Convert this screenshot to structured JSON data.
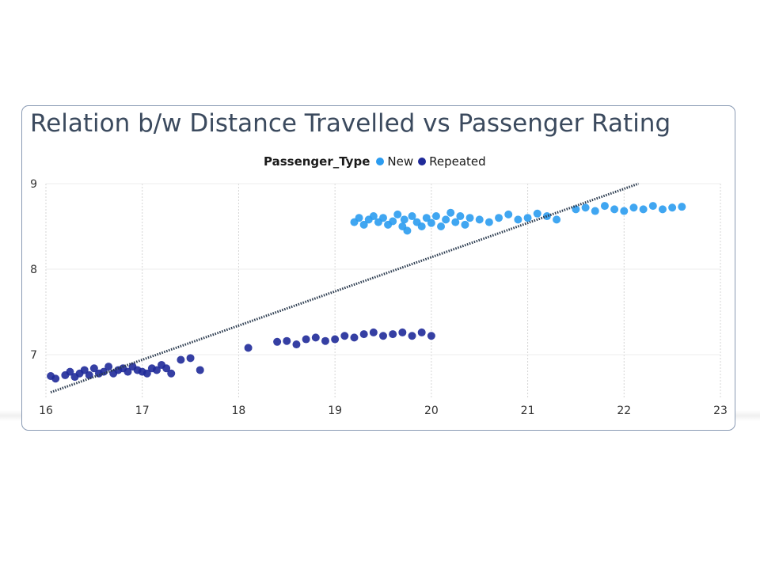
{
  "chart_data": {
    "type": "scatter",
    "title": "Relation b/w Distance Travelled vs Passenger Rating",
    "legend": {
      "title": "Passenger_Type",
      "placement": "top-center",
      "entries": [
        "New",
        "Repeated"
      ]
    },
    "xlim": [
      16,
      23
    ],
    "ylim": [
      6.5,
      9
    ],
    "x_ticks": [
      "16",
      "17",
      "18",
      "19",
      "20",
      "21",
      "22",
      "23"
    ],
    "y_ticks": [
      "7",
      "8",
      "9"
    ],
    "grid": true,
    "trendline": {
      "style": "dotted",
      "x": [
        16.05,
        22.15
      ],
      "y": [
        6.56,
        9.0
      ]
    },
    "series": [
      {
        "name": "New",
        "color": "#2b9cf0",
        "points": [
          [
            19.2,
            8.55
          ],
          [
            19.25,
            8.6
          ],
          [
            19.3,
            8.52
          ],
          [
            19.35,
            8.58
          ],
          [
            19.4,
            8.62
          ],
          [
            19.45,
            8.55
          ],
          [
            19.5,
            8.6
          ],
          [
            19.55,
            8.52
          ],
          [
            19.6,
            8.56
          ],
          [
            19.65,
            8.64
          ],
          [
            19.7,
            8.5
          ],
          [
            19.72,
            8.58
          ],
          [
            19.75,
            8.45
          ],
          [
            19.8,
            8.62
          ],
          [
            19.85,
            8.55
          ],
          [
            19.9,
            8.5
          ],
          [
            19.95,
            8.6
          ],
          [
            20.0,
            8.54
          ],
          [
            20.05,
            8.62
          ],
          [
            20.1,
            8.5
          ],
          [
            20.15,
            8.58
          ],
          [
            20.2,
            8.66
          ],
          [
            20.25,
            8.55
          ],
          [
            20.3,
            8.62
          ],
          [
            20.35,
            8.52
          ],
          [
            20.4,
            8.6
          ],
          [
            20.5,
            8.58
          ],
          [
            20.6,
            8.55
          ],
          [
            20.7,
            8.6
          ],
          [
            20.8,
            8.64
          ],
          [
            20.9,
            8.58
          ],
          [
            21.0,
            8.6
          ],
          [
            21.1,
            8.65
          ],
          [
            21.2,
            8.62
          ],
          [
            21.3,
            8.58
          ],
          [
            21.5,
            8.7
          ],
          [
            21.6,
            8.72
          ],
          [
            21.7,
            8.68
          ],
          [
            21.8,
            8.74
          ],
          [
            21.9,
            8.7
          ],
          [
            22.0,
            8.68
          ],
          [
            22.1,
            8.72
          ],
          [
            22.2,
            8.7
          ],
          [
            22.3,
            8.74
          ],
          [
            22.4,
            8.7
          ],
          [
            22.5,
            8.72
          ],
          [
            22.6,
            8.73
          ]
        ]
      },
      {
        "name": "Repeated",
        "color": "#1f2a99",
        "points": [
          [
            16.05,
            6.75
          ],
          [
            16.1,
            6.72
          ],
          [
            16.2,
            6.76
          ],
          [
            16.25,
            6.8
          ],
          [
            16.3,
            6.74
          ],
          [
            16.35,
            6.78
          ],
          [
            16.4,
            6.82
          ],
          [
            16.45,
            6.76
          ],
          [
            16.5,
            6.84
          ],
          [
            16.55,
            6.78
          ],
          [
            16.6,
            6.8
          ],
          [
            16.65,
            6.86
          ],
          [
            16.7,
            6.78
          ],
          [
            16.75,
            6.82
          ],
          [
            16.8,
            6.84
          ],
          [
            16.85,
            6.8
          ],
          [
            16.9,
            6.86
          ],
          [
            16.95,
            6.82
          ],
          [
            17.0,
            6.8
          ],
          [
            17.05,
            6.78
          ],
          [
            17.1,
            6.84
          ],
          [
            17.15,
            6.82
          ],
          [
            17.2,
            6.88
          ],
          [
            17.25,
            6.84
          ],
          [
            17.3,
            6.78
          ],
          [
            17.4,
            6.94
          ],
          [
            17.5,
            6.96
          ],
          [
            17.6,
            6.82
          ],
          [
            18.1,
            7.08
          ],
          [
            18.4,
            7.15
          ],
          [
            18.5,
            7.16
          ],
          [
            18.6,
            7.12
          ],
          [
            18.7,
            7.18
          ],
          [
            18.8,
            7.2
          ],
          [
            18.9,
            7.16
          ],
          [
            19.0,
            7.18
          ],
          [
            19.1,
            7.22
          ],
          [
            19.2,
            7.2
          ],
          [
            19.3,
            7.24
          ],
          [
            19.4,
            7.26
          ],
          [
            19.5,
            7.22
          ],
          [
            19.6,
            7.24
          ],
          [
            19.7,
            7.26
          ],
          [
            19.8,
            7.22
          ],
          [
            19.9,
            7.26
          ],
          [
            20.0,
            7.22
          ]
        ]
      }
    ]
  }
}
